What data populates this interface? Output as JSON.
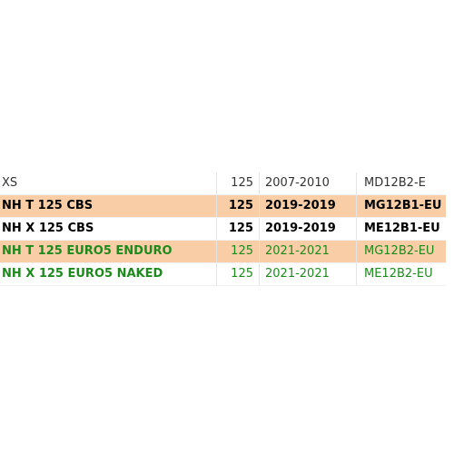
{
  "table": {
    "rows": [
      [
        "XS",
        "125",
        "2007-2010",
        "MD12B2-E"
      ],
      [
        "NH T 125 CBS",
        "125",
        "2019-2019",
        "MG12B1-EU"
      ],
      [
        "NH X 125 CBS",
        "125",
        "2019-2019",
        "ME12B1-EU"
      ],
      [
        "NH T 125 EURO5 ENDURO",
        "125",
        "2021-2021",
        "MG12B2-EU"
      ],
      [
        "NH X 125 EURO5 NAKED",
        "125",
        "2021-2021",
        "ME12B2-EU"
      ]
    ]
  }
}
